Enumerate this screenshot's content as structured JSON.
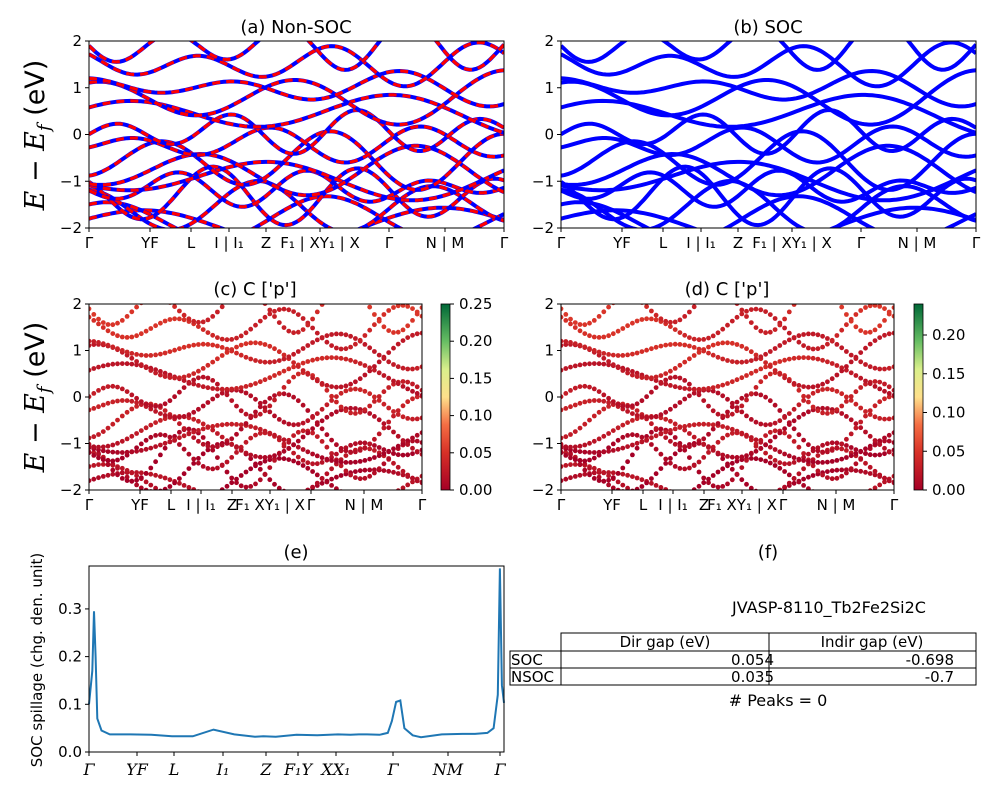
{
  "chart_data": [
    {
      "id": "a",
      "type": "line",
      "title": "(a) Non-SOC",
      "ylabel": "E − E_f (eV)",
      "ylim": [
        -2,
        2
      ],
      "yticks": [
        "−2",
        "−1",
        "0",
        "1",
        "2"
      ],
      "xticks": [
        "Γ",
        "YF",
        "L",
        "I | I₁",
        "Z",
        "F₁ | XY₁ | X",
        "Γ",
        "N | M",
        "Γ"
      ],
      "series": [
        {
          "color": "#0000ff",
          "style": "solid"
        },
        {
          "color": "#ff0000",
          "style": "dashed"
        }
      ]
    },
    {
      "id": "b",
      "type": "line",
      "title": "(b) SOC",
      "ylim": [
        -2,
        2
      ],
      "yticks": [
        "−2",
        "−1",
        "0",
        "1",
        "2"
      ],
      "xticks": [
        "Γ",
        "YF",
        "L",
        "I | I₁",
        "Z",
        "F₁ | XY₁ | X",
        "Γ",
        "N | M",
        "Γ"
      ],
      "series": [
        {
          "color": "#0000ff",
          "style": "solid"
        }
      ]
    },
    {
      "id": "c",
      "type": "scatter",
      "title": "(c)  C ['p']",
      "ylabel": "E − E_f (eV)",
      "ylim": [
        -2,
        2
      ],
      "yticks": [
        "−2",
        "−1",
        "0",
        "1",
        "2"
      ],
      "xticks": [
        "Γ",
        "YF",
        "L",
        "I | I₁",
        "Z",
        "F₁ XY₁ | X",
        "Γ",
        "N | M",
        "Γ"
      ],
      "colorbar": {
        "min": 0.0,
        "max": 0.25,
        "ticks": [
          "0.00",
          "0.05",
          "0.10",
          "0.15",
          "0.20",
          "0.25"
        ],
        "colormap": "RdYlGn"
      }
    },
    {
      "id": "d",
      "type": "scatter",
      "title": "(d) C ['p']",
      "ylim": [
        -2,
        2
      ],
      "yticks": [
        "−2",
        "−1",
        "0",
        "1",
        "2"
      ],
      "xticks": [
        "Γ",
        "YF",
        "L",
        "I | I₁",
        "Z",
        "F₁ XY₁ | X",
        "Γ",
        "N | M",
        "Γ"
      ],
      "colorbar": {
        "min": 0.0,
        "max": 0.24,
        "ticks": [
          "0.00",
          "0.05",
          "0.10",
          "0.15",
          "0.20"
        ],
        "colormap": "RdYlGn"
      }
    },
    {
      "id": "e",
      "type": "line",
      "title": "(e)",
      "ylabel": "SOC spillage (chg. den. unit)",
      "ylim": [
        0,
        0.39
      ],
      "yticks": [
        "0.0",
        "0.1",
        "0.2",
        "0.3"
      ],
      "xticks": [
        "Γ",
        "YF",
        "L",
        "I₁",
        "Z",
        "F₁Y",
        "XX₁",
        "Γ",
        "NM",
        "Γ"
      ],
      "series": [
        {
          "color": "#1f77b4",
          "x": [
            0,
            0.008,
            0.012,
            0.016,
            0.02,
            0.03,
            0.05,
            0.1,
            0.15,
            0.2,
            0.25,
            0.3,
            0.35,
            0.4,
            0.42,
            0.45,
            0.5,
            0.55,
            0.6,
            0.63,
            0.65,
            0.67,
            0.7,
            0.72,
            0.73,
            0.74,
            0.75,
            0.76,
            0.78,
            0.79,
            0.8,
            0.85,
            0.9,
            0.93,
            0.96,
            0.975,
            0.985,
            0.99,
            0.995,
            1.0
          ],
          "values": [
            0.1,
            0.17,
            0.295,
            0.2,
            0.07,
            0.045,
            0.037,
            0.037,
            0.036,
            0.033,
            0.033,
            0.047,
            0.037,
            0.032,
            0.033,
            0.032,
            0.036,
            0.035,
            0.037,
            0.036,
            0.037,
            0.037,
            0.036,
            0.04,
            0.065,
            0.105,
            0.108,
            0.05,
            0.035,
            0.033,
            0.031,
            0.037,
            0.038,
            0.038,
            0.04,
            0.05,
            0.12,
            0.385,
            0.14,
            0.103
          ]
        }
      ]
    }
  ],
  "panel_f": {
    "title": "(f)",
    "material": "JVASP-8110_Tb2Fe2Si2C",
    "table": {
      "headers": [
        "",
        "Dir gap (eV)",
        "Indir gap (eV)"
      ],
      "rows": [
        [
          "SOC",
          "0.054",
          "-0.698"
        ],
        [
          "NSOC",
          "0.035",
          "-0.7"
        ]
      ]
    },
    "peaks": "# Peaks = 0"
  }
}
